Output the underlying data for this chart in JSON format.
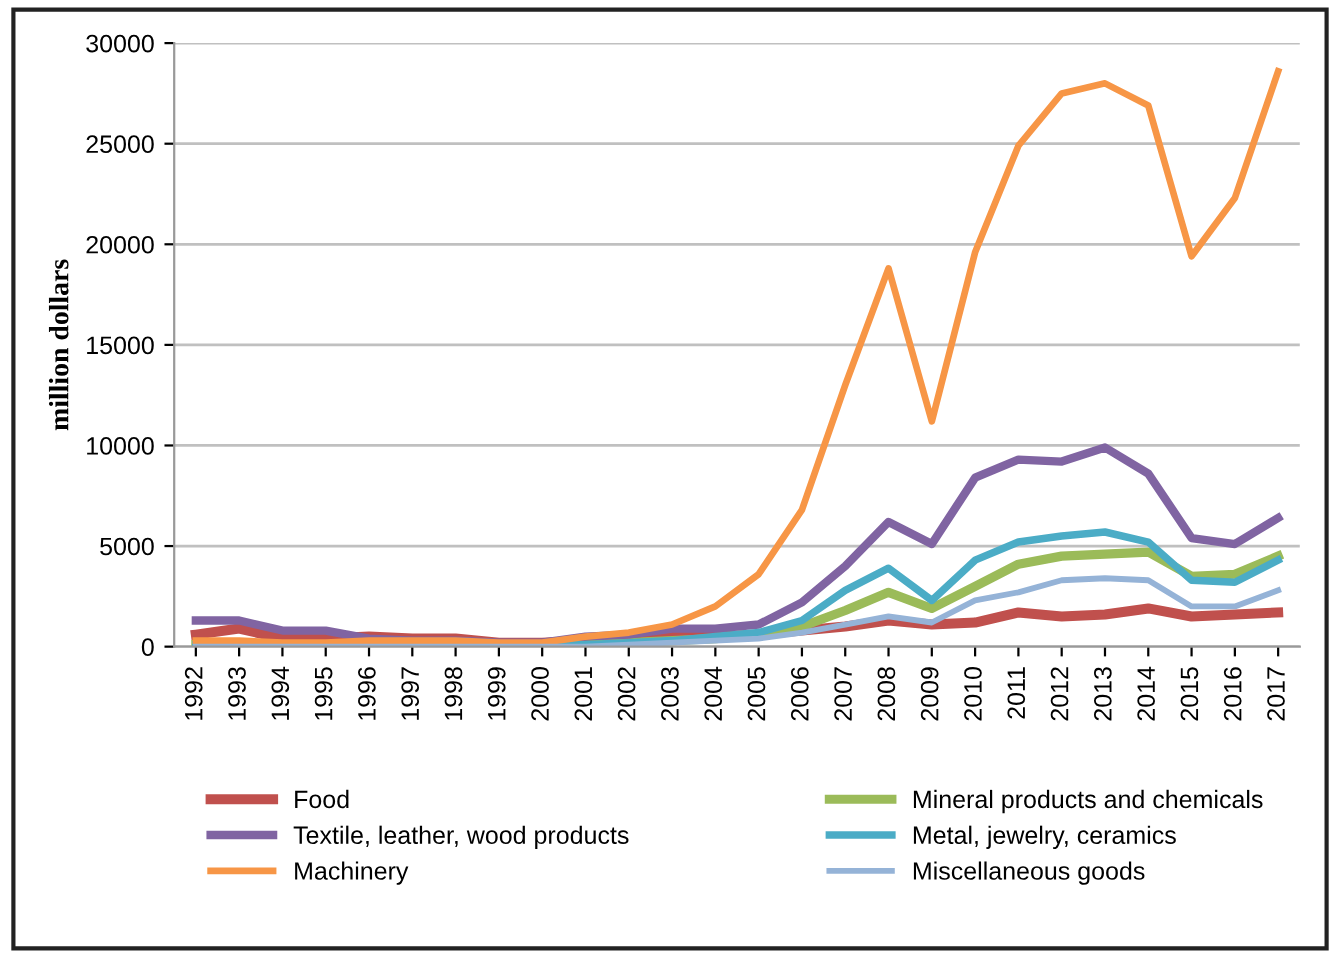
{
  "chart_data": {
    "type": "line",
    "ylabel": "million dollars",
    "categories": [
      "1992",
      "1993",
      "1994",
      "1995",
      "1996",
      "1997",
      "1998",
      "1999",
      "2000",
      "2001",
      "2002",
      "2003",
      "2004",
      "2005",
      "2006",
      "2007",
      "2008",
      "2009",
      "2010",
      "2011",
      "2012",
      "2013",
      "2014",
      "2015",
      "2016",
      "2017"
    ],
    "ylim": [
      0,
      30000
    ],
    "yticks": [
      0,
      5000,
      10000,
      15000,
      20000,
      25000,
      30000
    ],
    "grid": "y",
    "legend": "bottom",
    "marker": "none",
    "line_style": "solid",
    "series": [
      {
        "name": "Food",
        "color": "#c0504d",
        "values": [
          600,
          900,
          400,
          400,
          500,
          400,
          400,
          200,
          200,
          300,
          400,
          500,
          500,
          600,
          800,
          1000,
          1300,
          1100,
          1200,
          1700,
          1500,
          1600,
          1900,
          1500,
          1600,
          1700
        ]
      },
      {
        "name": "Mineral products and chemicals",
        "color": "#9bbb59",
        "values": [
          100,
          100,
          100,
          100,
          100,
          100,
          100,
          100,
          100,
          100,
          200,
          300,
          400,
          600,
          1000,
          1800,
          2700,
          1900,
          3000,
          4100,
          4500,
          4600,
          4700,
          3500,
          3600,
          4500
        ]
      },
      {
        "name": "Textile, leather, wood products",
        "color": "#8064a2",
        "values": [
          1300,
          1300,
          800,
          800,
          400,
          300,
          300,
          200,
          200,
          500,
          600,
          900,
          900,
          1100,
          2200,
          4000,
          6200,
          5100,
          8400,
          9300,
          9200,
          9900,
          8600,
          5400,
          5100,
          6400
        ]
      },
      {
        "name": "Metal, jewelry, ceramics",
        "color": "#4bacc6",
        "values": [
          100,
          100,
          100,
          100,
          100,
          100,
          100,
          100,
          100,
          100,
          200,
          300,
          500,
          700,
          1300,
          2800,
          3900,
          2300,
          4300,
          5200,
          5500,
          5700,
          5200,
          3300,
          3200,
          4300
        ]
      },
      {
        "name": "Machinery",
        "color": "#f79646",
        "values": [
          300,
          300,
          200,
          200,
          300,
          300,
          300,
          200,
          200,
          500,
          700,
          1100,
          2000,
          3600,
          6800,
          13000,
          18800,
          11200,
          19600,
          24900,
          27500,
          28000,
          26900,
          19400,
          22300,
          28600
        ]
      },
      {
        "name": "Miscellaneous goods",
        "color": "#95b3d7",
        "values": [
          0,
          0,
          0,
          0,
          0,
          0,
          0,
          0,
          0,
          0,
          100,
          200,
          300,
          400,
          700,
          1100,
          1500,
          1200,
          2300,
          2700,
          3300,
          3400,
          3300,
          2000,
          2000,
          2800
        ]
      }
    ]
  }
}
